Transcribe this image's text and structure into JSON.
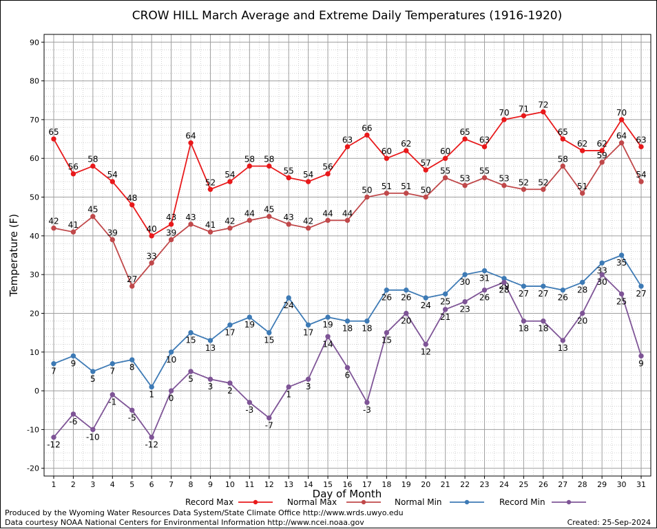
{
  "chart_data": {
    "type": "line",
    "title": "CROW HILL March Average and Extreme Daily Temperatures (1916-1920)",
    "xlabel": "Day of Month",
    "ylabel": "Temperature (F)",
    "ylim": [
      -22,
      92
    ],
    "yticks": [
      -20,
      -10,
      0,
      10,
      20,
      30,
      40,
      50,
      60,
      70,
      80,
      90
    ],
    "x": [
      1,
      2,
      3,
      4,
      5,
      6,
      7,
      8,
      9,
      10,
      11,
      12,
      13,
      14,
      15,
      16,
      17,
      18,
      19,
      20,
      21,
      22,
      23,
      24,
      25,
      26,
      27,
      28,
      29,
      30,
      31
    ],
    "grid": true,
    "legend_position": "bottom",
    "series": [
      {
        "name": "Record Max",
        "color": "#e8191b",
        "values": [
          65,
          56,
          58,
          54,
          48,
          40,
          43,
          64,
          52,
          54,
          58,
          58,
          55,
          54,
          56,
          63,
          66,
          60,
          62,
          57,
          60,
          65,
          63,
          70,
          71,
          72,
          65,
          62,
          62,
          70,
          63
        ],
        "label_pos": "above"
      },
      {
        "name": "Normal Max",
        "color": "#c0484a",
        "values": [
          42,
          41,
          45,
          39,
          27,
          33,
          39,
          43,
          41,
          42,
          44,
          45,
          43,
          42,
          44,
          44,
          50,
          51,
          51,
          50,
          55,
          53,
          55,
          53,
          52,
          52,
          58,
          51,
          59,
          64,
          54
        ],
        "label_pos": "above"
      },
      {
        "name": "Normal Min",
        "color": "#3d7ab5",
        "values": [
          7,
          9,
          5,
          7,
          8,
          1,
          10,
          15,
          13,
          17,
          19,
          15,
          24,
          17,
          19,
          18,
          18,
          26,
          26,
          24,
          25,
          30,
          31,
          29,
          27,
          27,
          26,
          28,
          33,
          35,
          27
        ],
        "label_pos": "below"
      },
      {
        "name": "Record Min",
        "color": "#7e5496",
        "values": [
          -12,
          -6,
          -10,
          -1,
          -5,
          -12,
          0,
          5,
          3,
          2,
          -3,
          -7,
          1,
          3,
          14,
          6,
          -3,
          15,
          20,
          12,
          21,
          23,
          26,
          28,
          18,
          18,
          13,
          20,
          30,
          25,
          9
        ],
        "label_pos": "below"
      }
    ]
  },
  "footer": {
    "credit_line1": "Produced by the Wyoming Water Resources Data System/State Climate Office http://www.wrds.uwyo.edu",
    "credit_line2": "Data courtesy NOAA National Centers for Environmental Information http://www.ncei.noaa.gov",
    "created": "Created: 25-Sep-2024"
  }
}
